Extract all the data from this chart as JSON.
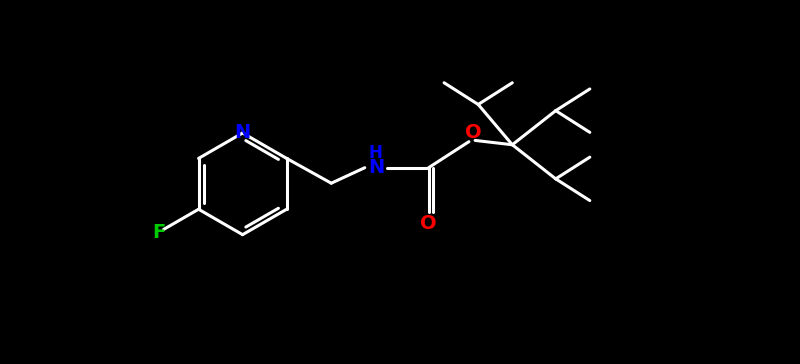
{
  "background_color": "#000000",
  "bond_color": "#ffffff",
  "N_color": "#0000ff",
  "O_color": "#ff0000",
  "F_color": "#00cc00",
  "bond_width": 2.2,
  "fig_width": 8.0,
  "fig_height": 3.64,
  "dpi": 100,
  "xlim": [
    -1.0,
    9.0
  ],
  "ylim": [
    -2.2,
    2.2
  ]
}
